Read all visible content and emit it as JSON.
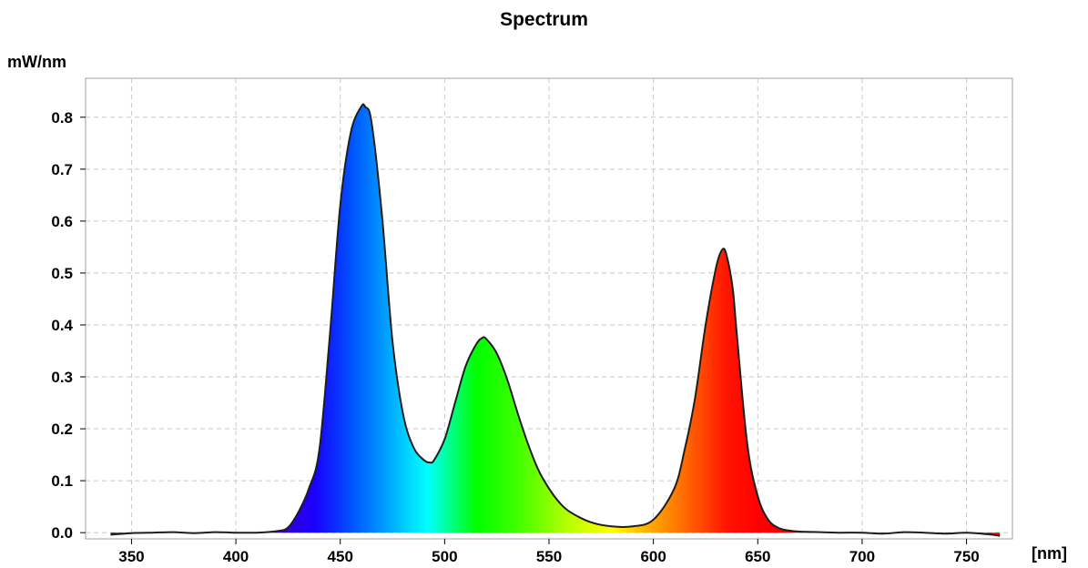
{
  "chart_data": {
    "type": "area",
    "title": "Spectrum",
    "ylabel": "mW/nm",
    "xlabel": "[nm]",
    "xlim": [
      328,
      772
    ],
    "ylim": [
      -0.012,
      0.875
    ],
    "xticks": [
      350,
      400,
      450,
      500,
      550,
      600,
      650,
      700,
      750
    ],
    "yticks": [
      0.0,
      0.1,
      0.2,
      0.3,
      0.4,
      0.5,
      0.6,
      0.7,
      0.8
    ],
    "grid": true,
    "fill": "visible-spectrum gradient under curve",
    "series": [
      {
        "x": [
          340,
          350,
          360,
          370,
          380,
          390,
          400,
          410,
          420,
          425,
          430,
          435,
          440,
          445,
          450,
          455,
          460,
          462,
          465,
          470,
          475,
          480,
          485,
          490,
          493,
          495,
          500,
          505,
          510,
          515,
          518,
          520,
          525,
          530,
          535,
          540,
          545,
          550,
          555,
          560,
          570,
          580,
          590,
          600,
          610,
          615,
          620,
          625,
          630,
          633,
          635,
          638,
          640,
          645,
          650,
          655,
          660,
          665,
          670,
          680,
          690,
          700,
          710,
          720,
          730,
          740,
          750,
          760,
          766
        ],
        "y": [
          -0.004,
          -0.001,
          0.0,
          0.001,
          -0.001,
          0.001,
          0.0,
          0.0,
          0.003,
          0.01,
          0.04,
          0.085,
          0.16,
          0.38,
          0.63,
          0.77,
          0.82,
          0.82,
          0.79,
          0.61,
          0.37,
          0.23,
          0.165,
          0.14,
          0.135,
          0.14,
          0.18,
          0.25,
          0.32,
          0.362,
          0.375,
          0.373,
          0.345,
          0.295,
          0.23,
          0.17,
          0.12,
          0.085,
          0.058,
          0.04,
          0.02,
          0.012,
          0.012,
          0.025,
          0.085,
          0.16,
          0.26,
          0.4,
          0.51,
          0.545,
          0.535,
          0.47,
          0.38,
          0.17,
          0.07,
          0.025,
          0.009,
          0.004,
          0.002,
          0.001,
          0.0,
          0.0,
          -0.002,
          0.001,
          0.0,
          -0.002,
          0.0,
          -0.003,
          -0.006
        ]
      }
    ]
  }
}
